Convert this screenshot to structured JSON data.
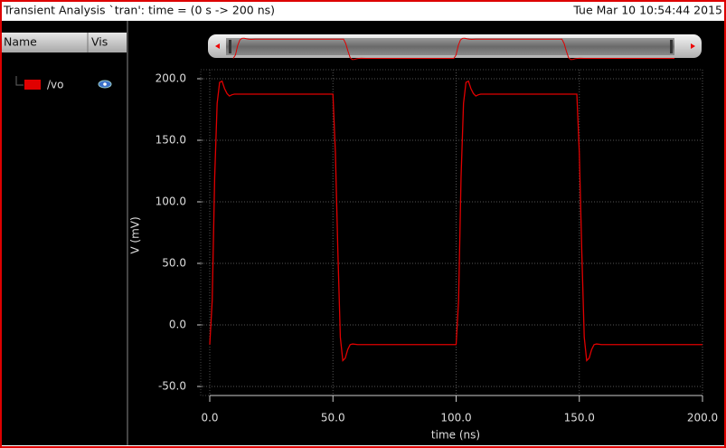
{
  "window": {
    "title": "Transient Analysis `tran': time = (0 s -> 200 ns)",
    "timestamp": "Tue Mar 10 10:54:44 2015"
  },
  "panel": {
    "name_header": "Name",
    "vis_header": "Vis"
  },
  "chart_data": {
    "type": "line",
    "xlabel": "time (ns)",
    "ylabel": "V (mV)",
    "x": [
      0,
      1,
      2,
      3,
      4,
      5,
      6,
      7,
      8,
      9,
      10,
      50,
      51,
      52,
      53,
      54,
      55,
      56,
      57,
      58,
      60,
      100,
      101,
      102,
      103,
      104,
      105,
      106,
      107,
      108,
      109,
      110,
      149,
      150,
      151,
      152,
      153,
      154,
      155,
      156,
      157,
      159,
      200
    ],
    "series": [
      {
        "name": "/vo",
        "color": "#e00000",
        "values": [
          -16,
          20,
          120,
          180,
          197,
          198,
          192,
          188,
          186,
          187,
          187.5,
          187.5,
          140,
          60,
          -10,
          -29,
          -27,
          -20,
          -16,
          -15.5,
          -16,
          -16,
          20,
          120,
          180,
          197,
          198,
          192,
          188,
          186,
          187,
          187.5,
          187.5,
          140,
          60,
          -10,
          -29,
          -27,
          -20,
          -16,
          -15.5,
          -16,
          -16
        ]
      }
    ],
    "xlim": [
      0,
      200
    ],
    "xticks": [
      {
        "value": 0,
        "label": "0.0"
      },
      {
        "value": 50,
        "label": "50.0"
      },
      {
        "value": 100,
        "label": "100.0"
      },
      {
        "value": 150,
        "label": "150.0"
      },
      {
        "value": 200,
        "label": "200.0"
      }
    ],
    "ylim": [
      -50,
      200
    ],
    "yticks": [
      {
        "value": -50,
        "label": "-50.0"
      },
      {
        "value": 0,
        "label": "0.0"
      },
      {
        "value": 50,
        "label": "50.0"
      },
      {
        "value": 100,
        "label": "100.0"
      },
      {
        "value": 150,
        "label": "150.0"
      },
      {
        "value": 200,
        "label": "200.0"
      }
    ],
    "grid": true
  }
}
